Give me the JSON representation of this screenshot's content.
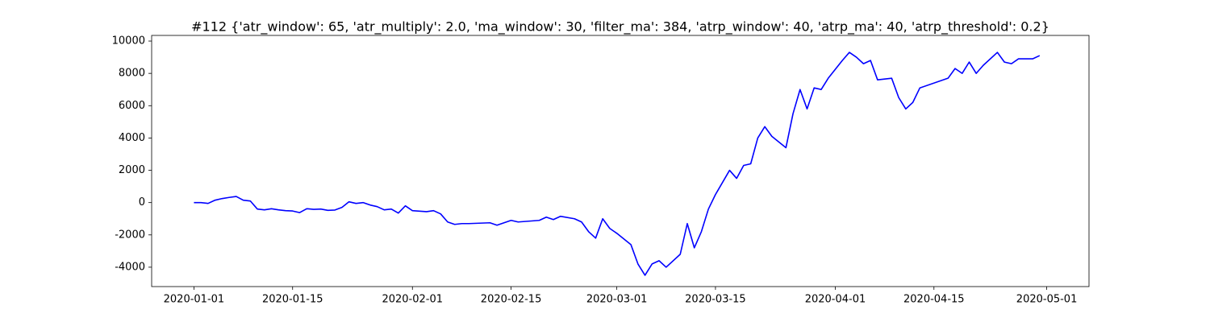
{
  "chart_data": {
    "type": "line",
    "title": "#112 {'atr_window': 65, 'atr_multiply': 2.0, 'ma_window': 30, 'filter_ma': 384, 'atrp_window': 40, 'atrp_ma': 40, 'atrp_threshold': 0.2}",
    "color": "#0000ff",
    "x": [
      "2020-01-01",
      "2020-01-02",
      "2020-01-03",
      "2020-01-04",
      "2020-01-05",
      "2020-01-06",
      "2020-01-07",
      "2020-01-08",
      "2020-01-09",
      "2020-01-10",
      "2020-01-11",
      "2020-01-12",
      "2020-01-13",
      "2020-01-14",
      "2020-01-15",
      "2020-01-16",
      "2020-01-17",
      "2020-01-18",
      "2020-01-19",
      "2020-01-20",
      "2020-01-21",
      "2020-01-22",
      "2020-01-23",
      "2020-01-24",
      "2020-01-25",
      "2020-01-26",
      "2020-01-27",
      "2020-01-28",
      "2020-01-29",
      "2020-01-30",
      "2020-01-31",
      "2020-02-01",
      "2020-02-03",
      "2020-02-04",
      "2020-02-05",
      "2020-02-06",
      "2020-02-07",
      "2020-02-08",
      "2020-02-09",
      "2020-02-12",
      "2020-02-13",
      "2020-02-14",
      "2020-02-15",
      "2020-02-16",
      "2020-02-19",
      "2020-02-20",
      "2020-02-21",
      "2020-02-22",
      "2020-02-24",
      "2020-02-25",
      "2020-02-26",
      "2020-02-27",
      "2020-02-28",
      "2020-02-29",
      "2020-03-01",
      "2020-03-03",
      "2020-03-04",
      "2020-03-05",
      "2020-03-06",
      "2020-03-07",
      "2020-03-08",
      "2020-03-10",
      "2020-03-11",
      "2020-03-12",
      "2020-03-13",
      "2020-03-14",
      "2020-03-15",
      "2020-03-17",
      "2020-03-18",
      "2020-03-19",
      "2020-03-20",
      "2020-03-21",
      "2020-03-22",
      "2020-03-23",
      "2020-03-25",
      "2020-03-26",
      "2020-03-27",
      "2020-03-28",
      "2020-03-29",
      "2020-03-30",
      "2020-03-31",
      "2020-04-02",
      "2020-04-03",
      "2020-04-04",
      "2020-04-05",
      "2020-04-06",
      "2020-04-07",
      "2020-04-09",
      "2020-04-10",
      "2020-04-11",
      "2020-04-12",
      "2020-04-13",
      "2020-04-17",
      "2020-04-18",
      "2020-04-19",
      "2020-04-20",
      "2020-04-21",
      "2020-04-22",
      "2020-04-24",
      "2020-04-25",
      "2020-04-26",
      "2020-04-27",
      "2020-04-29",
      "2020-04-30"
    ],
    "values": [
      0,
      0,
      -50,
      150,
      250,
      320,
      380,
      150,
      100,
      -400,
      -450,
      -380,
      -450,
      -500,
      -520,
      -620,
      -380,
      -420,
      -400,
      -480,
      -460,
      -300,
      50,
      -50,
      0,
      -150,
      -250,
      -450,
      -400,
      -650,
      -200,
      -500,
      -560,
      -500,
      -700,
      -1200,
      -1350,
      -1300,
      -1300,
      -1250,
      -1400,
      -1250,
      -1100,
      -1200,
      -1100,
      -900,
      -1050,
      -850,
      -1000,
      -1200,
      -1800,
      -2200,
      -1000,
      -1600,
      -1900,
      -2600,
      -3800,
      -4500,
      -3800,
      -3600,
      -4000,
      -3200,
      -1300,
      -2800,
      -1800,
      -400,
      500,
      2000,
      1500,
      2300,
      2400,
      4000,
      4700,
      4100,
      3400,
      5500,
      7000,
      5800,
      7100,
      7000,
      7700,
      8800,
      9300,
      9000,
      8600,
      8800,
      7600,
      7700,
      6500,
      5800,
      6200,
      7100,
      7700,
      8300,
      8000,
      8700,
      8000,
      8500,
      9300,
      8700,
      8600,
      8900,
      8900,
      9100
    ],
    "xlim": [
      "2019-12-26",
      "2020-05-07"
    ],
    "xticks": [
      "2020-01-01",
      "2020-01-15",
      "2020-02-01",
      "2020-02-15",
      "2020-03-01",
      "2020-03-15",
      "2020-04-01",
      "2020-04-15",
      "2020-05-01"
    ],
    "ylim": [
      -5200,
      10350
    ],
    "yticks": [
      -4000,
      -2000,
      0,
      2000,
      4000,
      6000,
      8000,
      10000
    ]
  }
}
